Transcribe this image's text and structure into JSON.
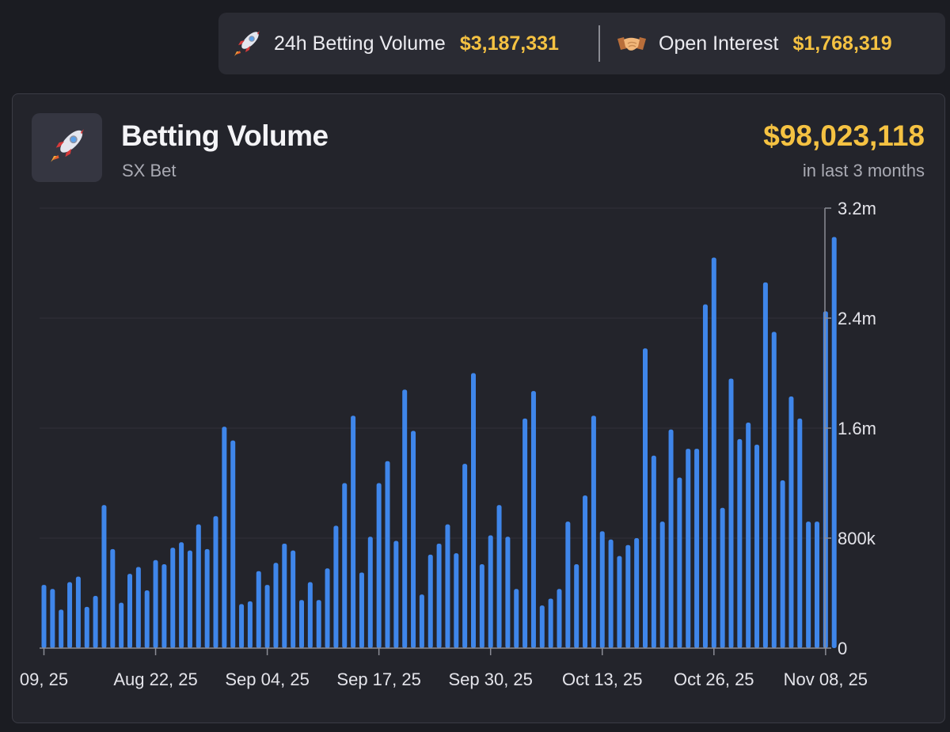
{
  "header": {
    "volume_label": "24h Betting Volume",
    "volume_value": "$3,187,331",
    "volume_icon": "rocket-icon",
    "oi_label": "Open Interest",
    "oi_value": "$1,768,319",
    "oi_icon": "handshake-icon"
  },
  "card": {
    "title": "Betting Volume",
    "subtitle": "SX Bet",
    "total": "$98,023,118",
    "period": "in last 3 months",
    "icon": "rocket-icon"
  },
  "colors": {
    "bar": "#3f86ea",
    "accent": "#f5c242",
    "background": "#1b1c22",
    "card": "#23242b"
  },
  "chart_data": {
    "type": "bar",
    "title": "Betting Volume",
    "xlabel": "",
    "ylabel": "",
    "ylim": [
      0,
      3200000
    ],
    "yticks": [
      {
        "value": 0,
        "label": "0"
      },
      {
        "value": 800000,
        "label": "800k"
      },
      {
        "value": 1600000,
        "label": "1.6m"
      },
      {
        "value": 2400000,
        "label": "2.4m"
      },
      {
        "value": 3200000,
        "label": "3.2m"
      }
    ],
    "xticks": [
      {
        "index": 0,
        "label": "09, 25"
      },
      {
        "index": 13,
        "label": "Aug 22, 25"
      },
      {
        "index": 26,
        "label": "Sep 04, 25"
      },
      {
        "index": 39,
        "label": "Sep 17, 25"
      },
      {
        "index": 52,
        "label": "Sep 30, 25"
      },
      {
        "index": 65,
        "label": "Oct 13, 25"
      },
      {
        "index": 78,
        "label": "Oct 26, 25"
      },
      {
        "index": 91,
        "label": "Nov 08, 25"
      }
    ],
    "grid": true,
    "values": [
      460000,
      430000,
      280000,
      480000,
      520000,
      300000,
      380000,
      1040000,
      720000,
      330000,
      540000,
      590000,
      420000,
      640000,
      610000,
      730000,
      770000,
      710000,
      900000,
      720000,
      960000,
      1610000,
      1510000,
      320000,
      340000,
      560000,
      460000,
      620000,
      760000,
      710000,
      350000,
      480000,
      350000,
      580000,
      890000,
      1200000,
      1690000,
      550000,
      810000,
      1200000,
      1360000,
      780000,
      1880000,
      1580000,
      390000,
      680000,
      760000,
      900000,
      690000,
      1340000,
      2000000,
      610000,
      820000,
      1040000,
      810000,
      430000,
      1670000,
      1870000,
      310000,
      360000,
      430000,
      920000,
      610000,
      1110000,
      1690000,
      850000,
      790000,
      670000,
      750000,
      800000,
      2180000,
      1400000,
      920000,
      1590000,
      1240000,
      1450000,
      1450000,
      2500000,
      2840000,
      1020000,
      1960000,
      1520000,
      1640000,
      1480000,
      2660000,
      2300000,
      1220000,
      1830000,
      1670000,
      920000,
      920000,
      2450000,
      2990000
    ]
  }
}
